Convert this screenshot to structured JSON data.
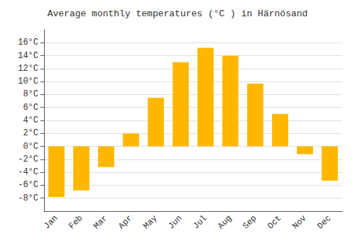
{
  "chart_data": {
    "type": "bar",
    "title": "Average monthly temperatures (°C ) in Härnösand",
    "categories": [
      "Jan",
      "Feb",
      "Mar",
      "Apr",
      "May",
      "Jun",
      "Jul",
      "Aug",
      "Sep",
      "Oct",
      "Nov",
      "Dec"
    ],
    "values": [
      -7.8,
      -6.8,
      -3.2,
      2.0,
      7.5,
      13.0,
      15.2,
      14.0,
      9.7,
      5.0,
      -1.2,
      -5.3
    ],
    "color": "#FFB700",
    "ylim": [
      -10,
      18
    ],
    "yticks": [
      {
        "value": -8,
        "label": "-8°C"
      },
      {
        "value": -6,
        "label": "-6°C"
      },
      {
        "value": -4,
        "label": "-4°C"
      },
      {
        "value": -2,
        "label": "-2°C"
      },
      {
        "value": 0,
        "label": "0°C"
      },
      {
        "value": 2,
        "label": "2°C"
      },
      {
        "value": 4,
        "label": "4°C"
      },
      {
        "value": 6,
        "label": "6°C"
      },
      {
        "value": 8,
        "label": "8°C"
      },
      {
        "value": 10,
        "label": "10°C"
      },
      {
        "value": 12,
        "label": "12°C"
      },
      {
        "value": 14,
        "label": "14°C"
      },
      {
        "value": 16,
        "label": "16°C"
      }
    ],
    "grid": true
  }
}
